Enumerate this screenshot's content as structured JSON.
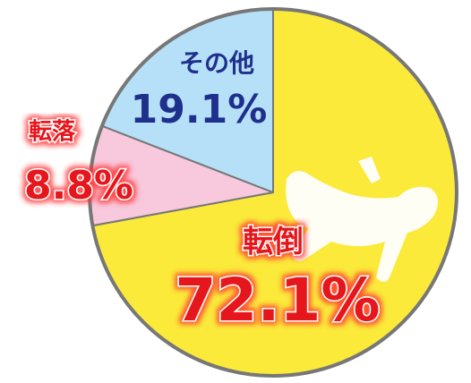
{
  "chart_data": {
    "type": "pie",
    "categories": [
      "転倒",
      "転落",
      "その他"
    ],
    "values": [
      72.1,
      8.8,
      19.1
    ],
    "value_labels": [
      "72.1%",
      "8.8%",
      "19.1%"
    ],
    "colors": [
      "#fbea3a",
      "#f8c8dc",
      "#b5e0f7"
    ]
  }
}
